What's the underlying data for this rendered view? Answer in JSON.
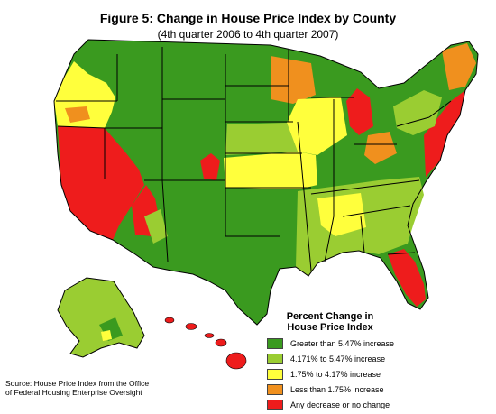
{
  "title": "Figure 5: Change in House Price Index by County",
  "subtitle": "(4th quarter 2006 to 4th quarter 2007)",
  "legend": {
    "title_line1": "Percent Change in",
    "title_line2": "House Price Index",
    "items": [
      {
        "label": "Greater than 5.47% increase",
        "color": "#3a9a1f"
      },
      {
        "label": "4.171% to 5.47% increase",
        "color": "#9acd32"
      },
      {
        "label": "1.75% to 4.17% increase",
        "color": "#ffff3c"
      },
      {
        "label": "Less than 1.75% increase",
        "color": "#f0901e"
      },
      {
        "label": "Any decrease or no change",
        "color": "#ee1c1c"
      }
    ]
  },
  "source": {
    "line1": "Source: House Price Index from the Office",
    "line2": "of Federal Housing Enterprise Oversight"
  },
  "colors": {
    "dark_green": "#3a9a1f",
    "light_green": "#9acd32",
    "yellow": "#ffff3c",
    "orange": "#f0901e",
    "red": "#ee1c1c",
    "border": "#000000"
  },
  "regions": [
    {
      "name": "pacific-coast",
      "category": "Any decrease or no change"
    },
    {
      "name": "mountain-west",
      "category": "Greater than 5.47% increase"
    },
    {
      "name": "great-plains",
      "category": "1.75% to 4.17% increase"
    },
    {
      "name": "midwest-upper",
      "category": "Less than 1.75% increase"
    },
    {
      "name": "michigan",
      "category": "Any decrease or no change"
    },
    {
      "name": "south",
      "category": "4.171% to 5.47% increase"
    },
    {
      "name": "florida",
      "category": "Any decrease or no change"
    },
    {
      "name": "northeast",
      "category": "Any decrease or no change"
    },
    {
      "name": "alaska",
      "category": "4.171% to 5.47% increase"
    },
    {
      "name": "hawaii",
      "category": "Any decrease or no change"
    }
  ]
}
